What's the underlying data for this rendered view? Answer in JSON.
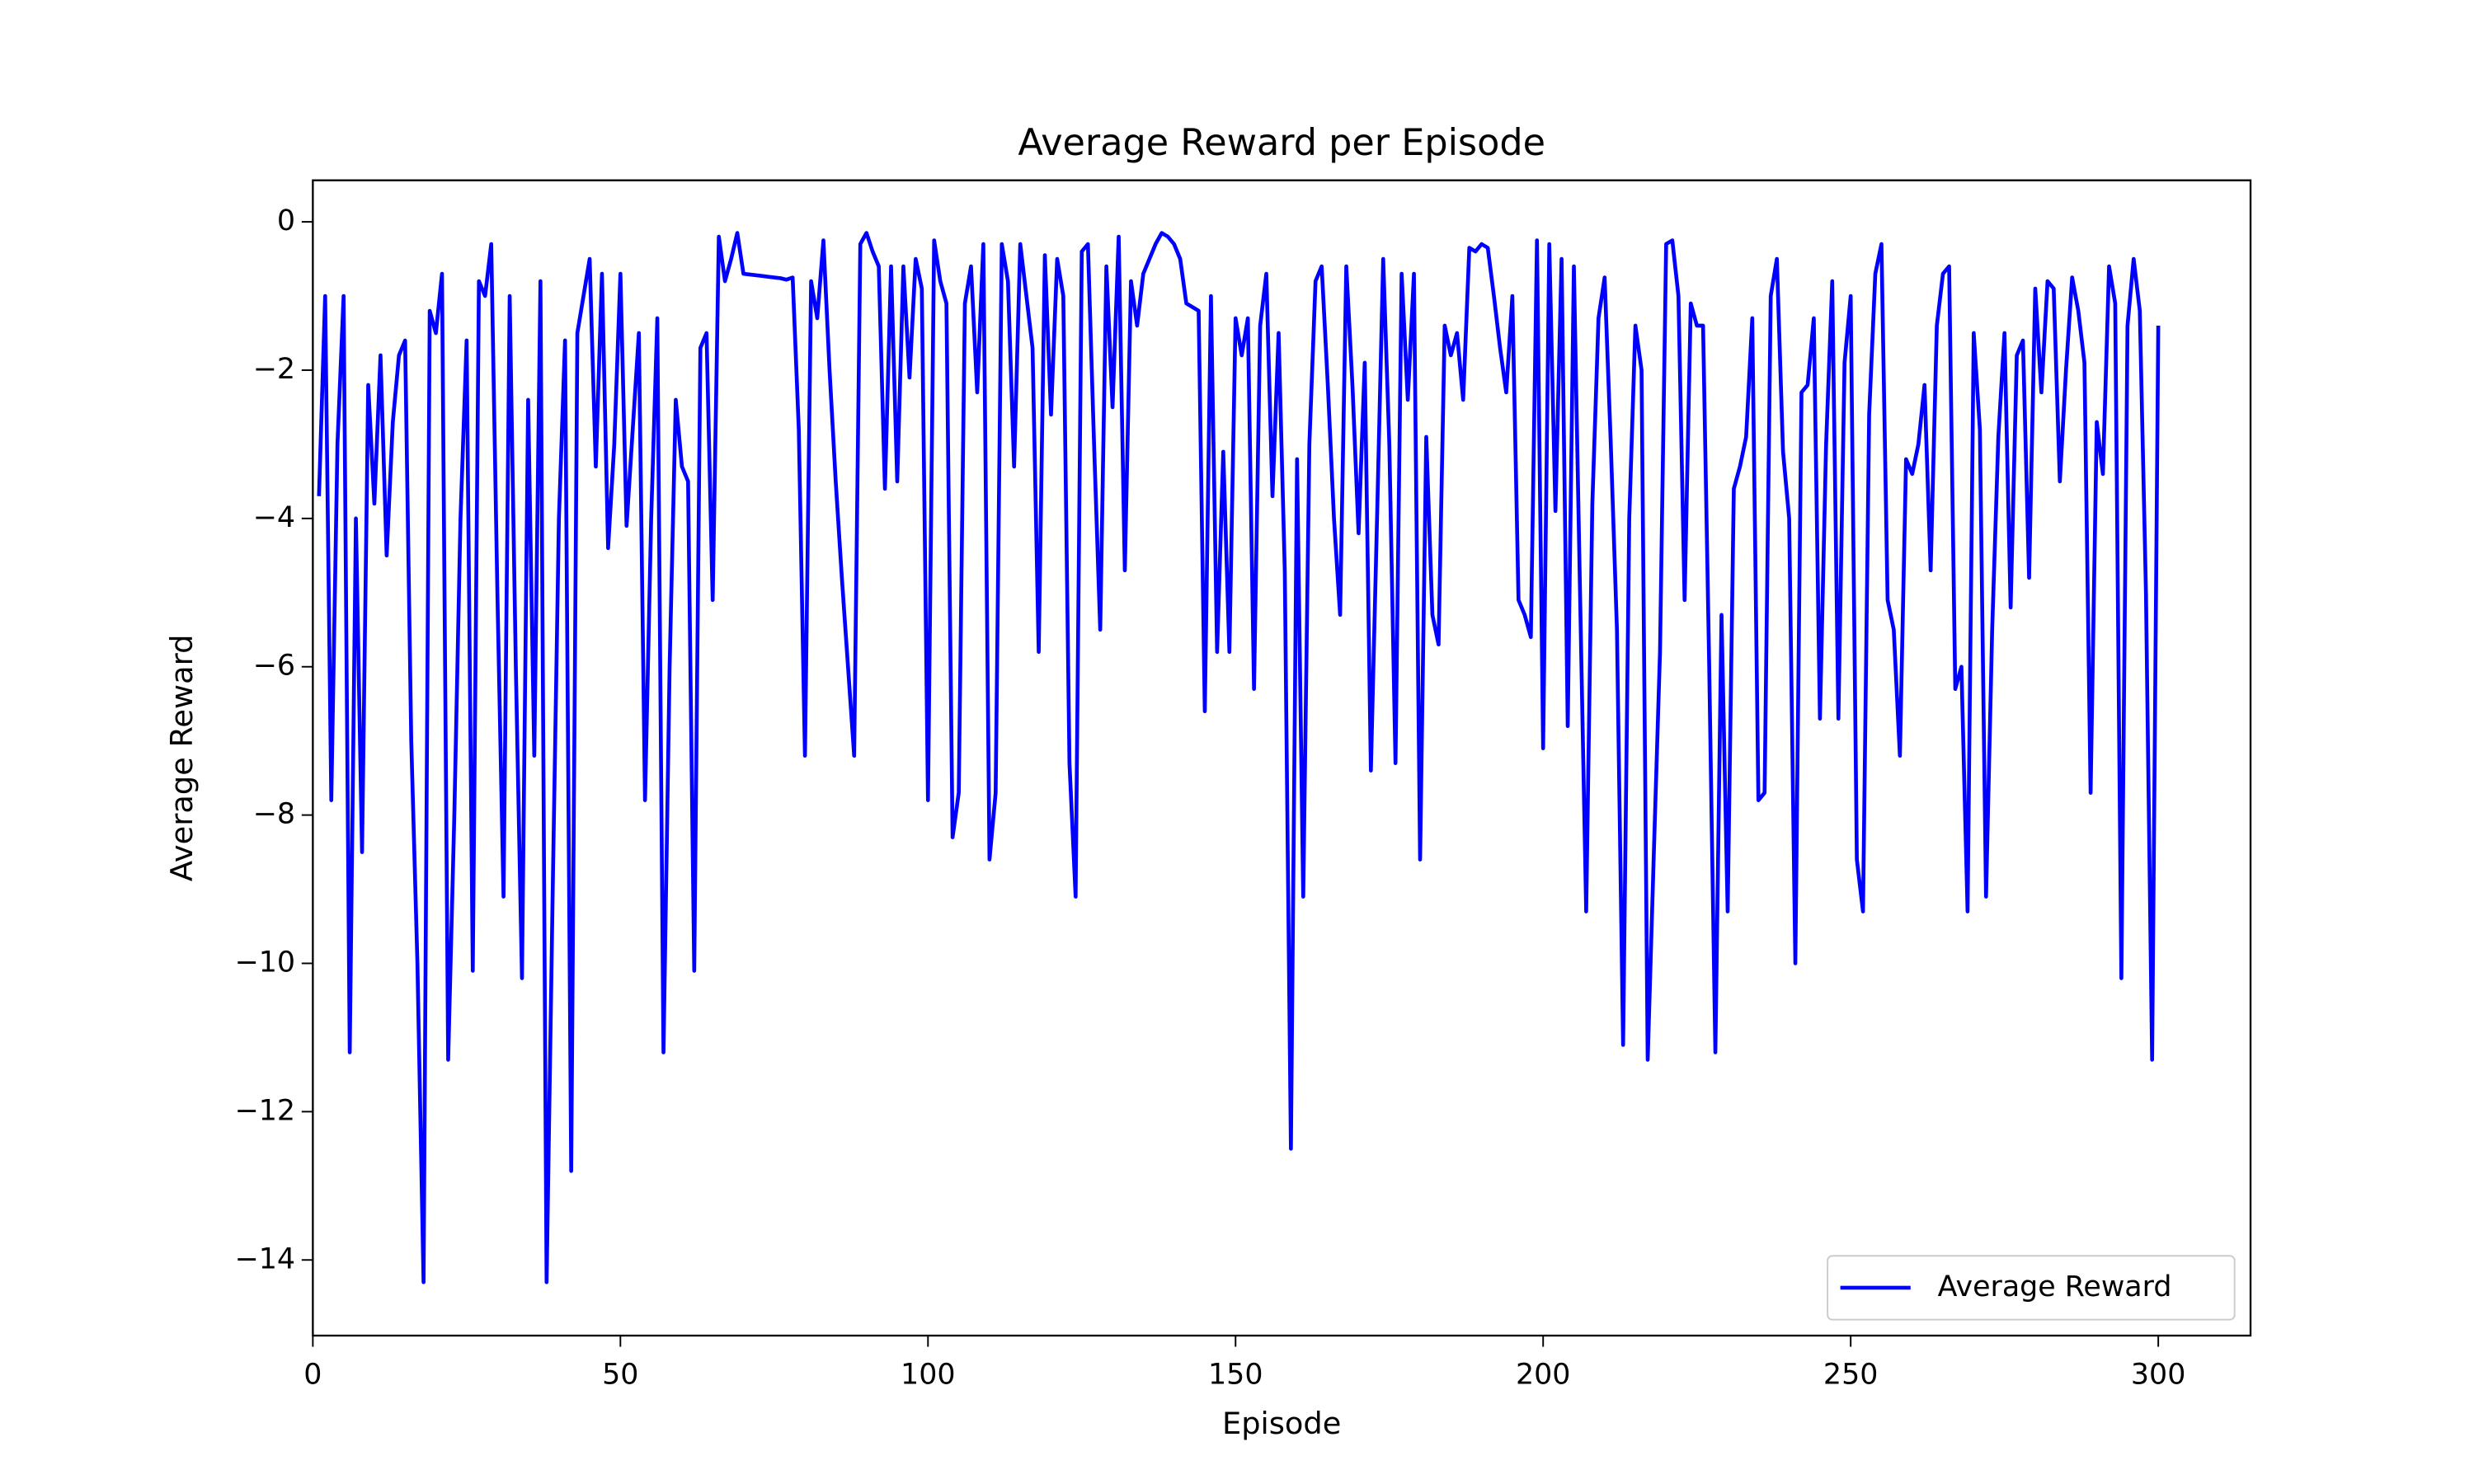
{
  "chart_data": {
    "type": "line",
    "title": "Average Reward per Episode",
    "xlabel": "Episode",
    "ylabel": "Average Reward",
    "xlim": [
      0,
      315
    ],
    "ylim": [
      -15.02,
      0.56
    ],
    "xticks": [
      0,
      50,
      100,
      150,
      200,
      250,
      300
    ],
    "yticks": [
      {
        "value": -14,
        "label": "−14"
      },
      {
        "value": -12,
        "label": "−12"
      },
      {
        "value": -10,
        "label": "−10"
      },
      {
        "value": -8,
        "label": "−8"
      },
      {
        "value": -6,
        "label": "−6"
      },
      {
        "value": -4,
        "label": "−4"
      },
      {
        "value": -2,
        "label": "−2"
      },
      0
    ],
    "grid": false,
    "legend": "lower right",
    "x": [
      1,
      2,
      3,
      4,
      5,
      6,
      7,
      8,
      9,
      10,
      11,
      12,
      13,
      14,
      15,
      16,
      17,
      18,
      19,
      20,
      21,
      22,
      23,
      24,
      25,
      26,
      27,
      28,
      29,
      30,
      31,
      32,
      33,
      34,
      35,
      36,
      37,
      38,
      39,
      40,
      41,
      42,
      43,
      44,
      45,
      46,
      47,
      48,
      49,
      50,
      51,
      52,
      53,
      54,
      55,
      56,
      57,
      58,
      59,
      60,
      61,
      62,
      63,
      64,
      65,
      66,
      67,
      68,
      69,
      70,
      71,
      72,
      73,
      74,
      75,
      76,
      77,
      78,
      79,
      80,
      81,
      82,
      83,
      84,
      85,
      86,
      87,
      88,
      89,
      90,
      91,
      92,
      93,
      94,
      95,
      96,
      97,
      98,
      99,
      100,
      101,
      102,
      103,
      104,
      105,
      106,
      107,
      108,
      109,
      110,
      111,
      112,
      113,
      114,
      115,
      116,
      117,
      118,
      119,
      120,
      121,
      122,
      123,
      124,
      125,
      126,
      127,
      128,
      129,
      130,
      131,
      132,
      133,
      134,
      135,
      136,
      137,
      138,
      139,
      140,
      141,
      142,
      143,
      144,
      145,
      146,
      147,
      148,
      149,
      150,
      151,
      152,
      153,
      154,
      155,
      156,
      157,
      158,
      159,
      160,
      161,
      162,
      163,
      164,
      165,
      166,
      167,
      168,
      169,
      170,
      171,
      172,
      173,
      174,
      175,
      176,
      177,
      178,
      179,
      180,
      181,
      182,
      183,
      184,
      185,
      186,
      187,
      188,
      189,
      190,
      191,
      192,
      193,
      194,
      195,
      196,
      197,
      198,
      199,
      200,
      201,
      202,
      203,
      204,
      205,
      206,
      207,
      208,
      209,
      210,
      211,
      212,
      213,
      214,
      215,
      216,
      217,
      218,
      219,
      220,
      221,
      222,
      223,
      224,
      225,
      226,
      227,
      228,
      229,
      230,
      231,
      232,
      233,
      234,
      235,
      236,
      237,
      238,
      239,
      240,
      241,
      242,
      243,
      244,
      245,
      246,
      247,
      248,
      249,
      250,
      251,
      252,
      253,
      254,
      255,
      256,
      257,
      258,
      259,
      260,
      261,
      262,
      263,
      264,
      265,
      266,
      267,
      268,
      269,
      270,
      271,
      272,
      273,
      274,
      275,
      276,
      277,
      278,
      279,
      280,
      281,
      282,
      283,
      284,
      285,
      286,
      287,
      288,
      289,
      290,
      291,
      292,
      293,
      294,
      295,
      296,
      297,
      298,
      299,
      300
    ],
    "series": [
      {
        "name": "Average Reward",
        "color": "#0000ff",
        "values": [
          -3.7,
          -1.0,
          -7.8,
          -3.0,
          -1.0,
          -11.2,
          -4.0,
          -8.5,
          -2.2,
          -3.8,
          -1.8,
          -4.5,
          -2.7,
          -1.8,
          -1.6,
          -7.0,
          -10.0,
          -14.3,
          -1.2,
          -1.5,
          -0.7,
          -11.3,
          -8.0,
          -4.0,
          -1.6,
          -10.1,
          -0.8,
          -1.0,
          -0.3,
          -5.0,
          -9.1,
          -1.0,
          -6.0,
          -10.2,
          -2.4,
          -7.2,
          -0.8,
          -14.3,
          -9.0,
          -4.0,
          -1.6,
          -12.8,
          -1.5,
          -1.0,
          -0.5,
          -3.3,
          -0.7,
          -4.4,
          -3.0,
          -0.7,
          -4.1,
          -2.8,
          -1.5,
          -7.8,
          -4.0,
          -1.3,
          -11.2,
          -6.0,
          -2.4,
          -3.3,
          -3.5,
          -10.1,
          -1.7,
          -1.5,
          -5.1,
          -0.2,
          -0.8,
          -0.5,
          -0.15,
          -0.7,
          -0.71,
          -0.72,
          -0.73,
          -0.74,
          -0.75,
          -0.76,
          -0.78,
          -0.75,
          -2.8,
          -7.2,
          -0.8,
          -1.3,
          -0.25,
          -2.0,
          -3.5,
          -4.8,
          -6.0,
          -7.2,
          -0.3,
          -0.15,
          -0.4,
          -0.6,
          -3.6,
          -0.6,
          -3.5,
          -0.6,
          -2.1,
          -0.5,
          -0.9,
          -7.8,
          -0.25,
          -0.8,
          -1.1,
          -8.3,
          -7.7,
          -1.1,
          -0.6,
          -2.3,
          -0.3,
          -8.6,
          -7.7,
          -0.3,
          -0.8,
          -3.3,
          -0.3,
          -1.0,
          -1.7,
          -5.8,
          -0.45,
          -2.6,
          -0.5,
          -1.0,
          -7.3,
          -9.1,
          -0.4,
          -0.3,
          -3.0,
          -5.5,
          -0.6,
          -2.5,
          -0.2,
          -4.7,
          -0.8,
          -1.4,
          -0.7,
          -0.5,
          -0.3,
          -0.15,
          -0.2,
          -0.3,
          -0.5,
          -1.1,
          -1.15,
          -1.2,
          -6.6,
          -1.0,
          -5.8,
          -3.1,
          -5.8,
          -1.3,
          -1.8,
          -1.3,
          -6.3,
          -1.4,
          -0.7,
          -3.7,
          -1.5,
          -4.7,
          -12.5,
          -3.2,
          -9.1,
          -3.0,
          -0.8,
          -0.6,
          -2.2,
          -4.0,
          -5.3,
          -0.6,
          -2.2,
          -4.2,
          -1.9,
          -7.4,
          -4.0,
          -0.5,
          -3.0,
          -7.3,
          -0.7,
          -2.4,
          -0.7,
          -8.6,
          -2.9,
          -5.3,
          -5.7,
          -1.4,
          -1.8,
          -1.5,
          -2.4,
          -0.35,
          -0.4,
          -0.3,
          -0.35,
          -1.0,
          -1.7,
          -2.3,
          -1.0,
          -5.1,
          -5.3,
          -5.6,
          -0.25,
          -7.1,
          -0.3,
          -3.9,
          -0.5,
          -6.8,
          -0.6,
          -5.0,
          -9.3,
          -3.8,
          -1.3,
          -0.75,
          -3.0,
          -5.5,
          -11.1,
          -4.0,
          -1.4,
          -2.0,
          -11.3,
          -8.5,
          -5.8,
          -0.3,
          -0.25,
          -1.0,
          -5.1,
          -1.1,
          -1.4,
          -1.4,
          -6.0,
          -11.2,
          -5.3,
          -9.3,
          -3.6,
          -3.3,
          -2.9,
          -1.3,
          -7.8,
          -7.7,
          -1.0,
          -0.5,
          -3.1,
          -4.0,
          -10.0,
          -2.3,
          -2.2,
          -1.3,
          -6.7,
          -3.0,
          -0.8,
          -6.7,
          -1.9,
          -1.0,
          -8.6,
          -9.3,
          -2.6,
          -0.7,
          -0.3,
          -5.1,
          -5.5,
          -7.2,
          -3.2,
          -3.4,
          -3.0,
          -2.2,
          -4.7,
          -1.4,
          -0.7,
          -0.6,
          -6.3,
          -6.0,
          -9.3,
          -1.5,
          -2.8,
          -9.1,
          -5.5,
          -2.9,
          -1.5,
          -5.2,
          -1.8,
          -1.6,
          -4.8,
          -0.9,
          -2.3,
          -0.8,
          -0.9,
          -3.5,
          -2.0,
          -0.75,
          -1.2,
          -1.9,
          -7.7,
          -2.7,
          -3.4,
          -0.6,
          -1.1,
          -10.2,
          -1.4,
          -0.5,
          -1.2,
          -5.0,
          -11.3,
          -1.4
        ]
      }
    ]
  }
}
